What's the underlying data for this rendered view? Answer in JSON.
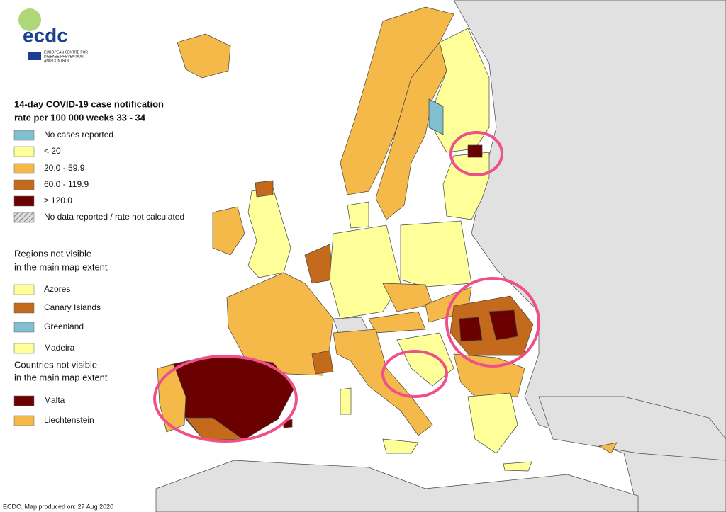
{
  "logo": {
    "name": "ecdc",
    "subtitle": [
      "EUROPEAN CENTRE FOR",
      "DISEASE PREVENTION",
      "AND CONTROL"
    ]
  },
  "legend": {
    "title": [
      "14-day COVID-19 case notification",
      "rate per 100 000 weeks 33 - 34"
    ],
    "items": [
      {
        "label": "No cases reported",
        "color": "#7fbfcf"
      },
      {
        "label": "< 20",
        "color": "#ffff99"
      },
      {
        "label": "20.0 - 59.9",
        "color": "#f5b94a"
      },
      {
        "label": "60.0 - 119.9",
        "color": "#c46a1c"
      },
      {
        "label": "≥ 120.0",
        "color": "#6b0000"
      },
      {
        "label": "No data reported / rate not calculated",
        "color": "#bbbbbb",
        "pattern": "hatched"
      }
    ]
  },
  "regions": {
    "title": [
      "Regions not visible",
      "in the main map extent"
    ],
    "items": [
      {
        "label": "Azores",
        "color": "#ffff99"
      },
      {
        "label": "Canary Islands",
        "color": "#c46a1c"
      },
      {
        "label": "Greenland",
        "color": "#7fbfcf"
      },
      {
        "label": "Madeira",
        "color": "#ffff99"
      }
    ]
  },
  "countries": {
    "title": [
      "Countries not visible",
      "in the main map extent"
    ],
    "items": [
      {
        "label": "Malta",
        "color": "#6b0000"
      },
      {
        "label": "Liechtenstein",
        "color": "#f5b94a"
      }
    ]
  },
  "footer": "ECDC. Map produced on: 27 Aug 2020"
}
